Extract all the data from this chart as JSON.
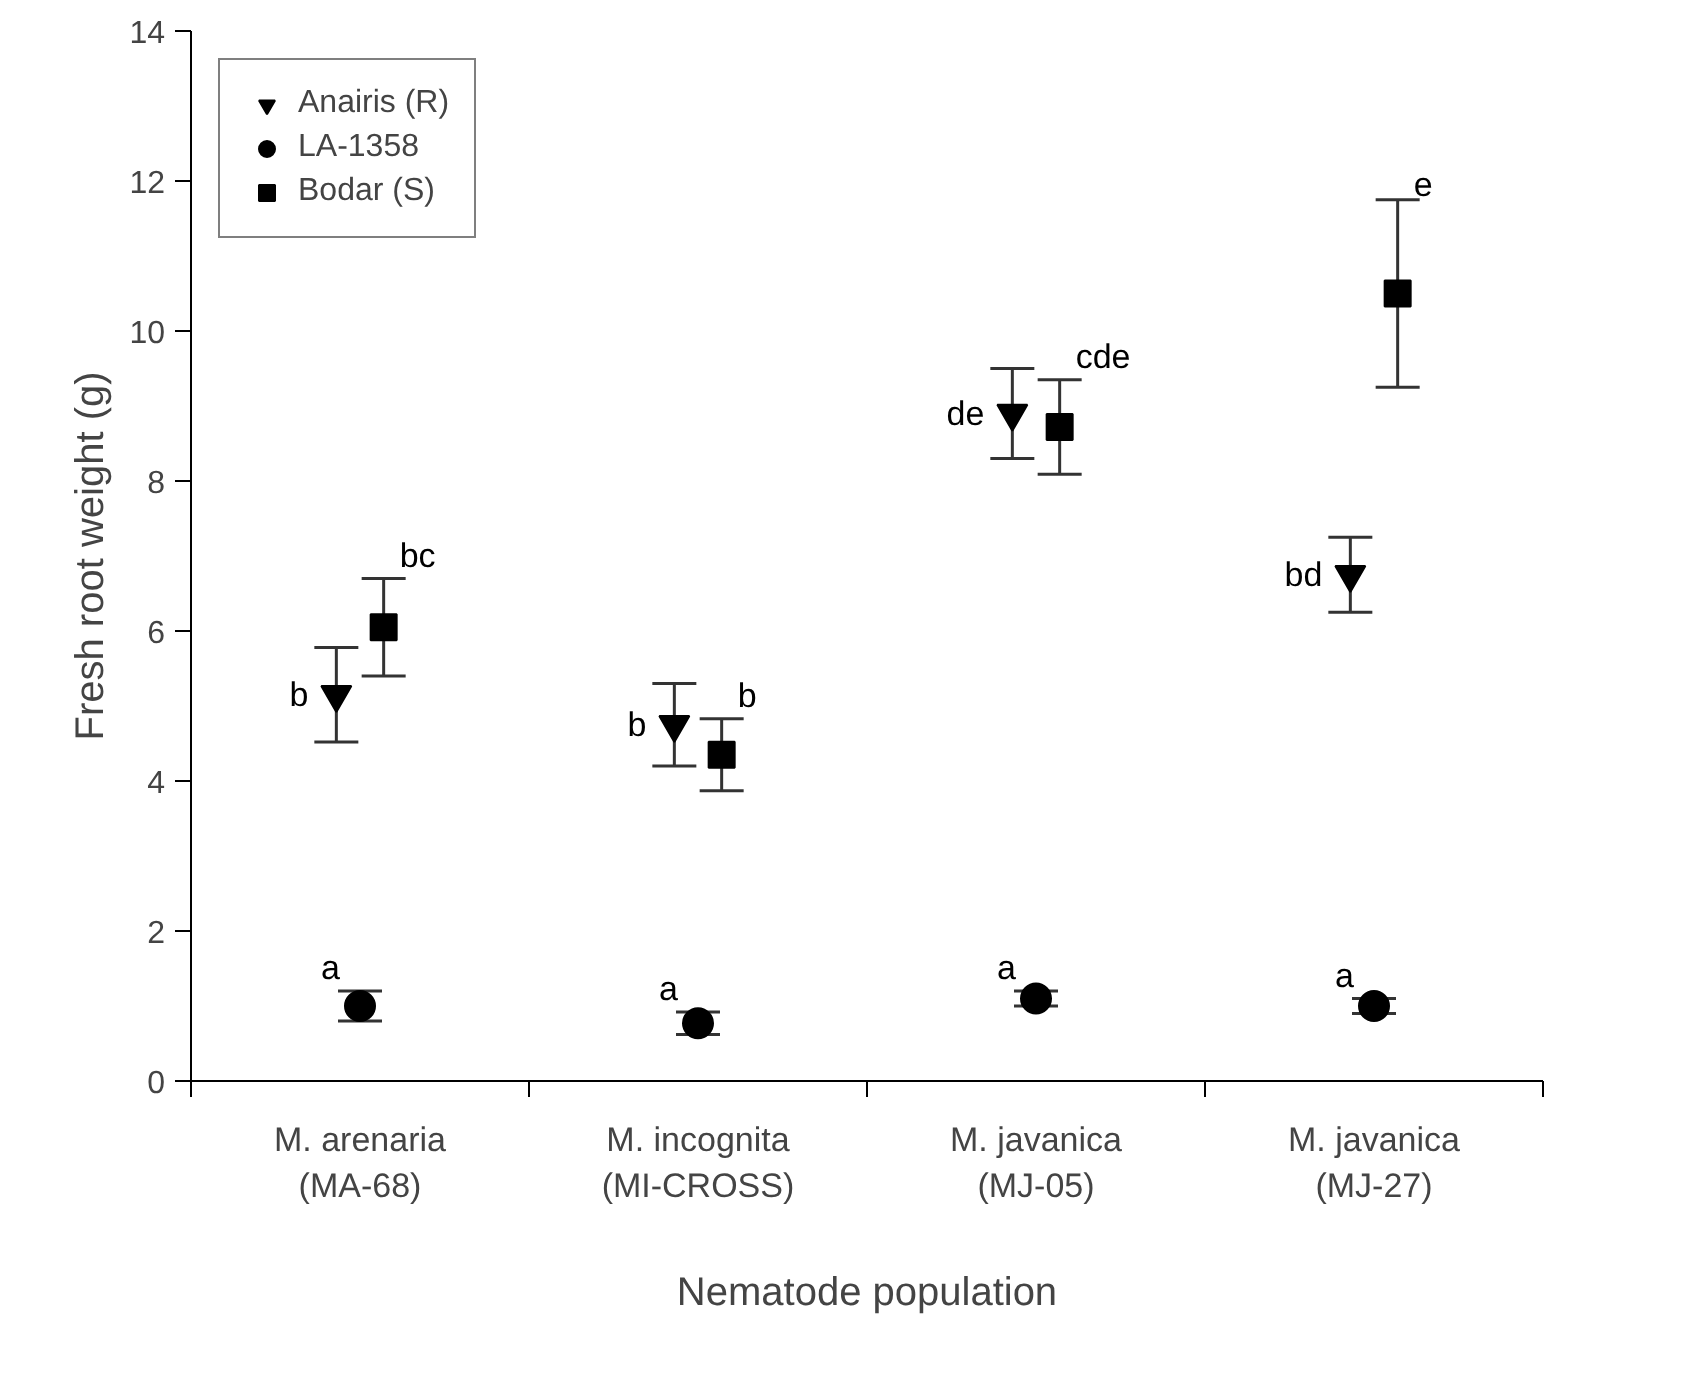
{
  "chart_data": {
    "type": "scatter",
    "xlabel": "Nematode population",
    "ylabel": "Fresh root weight (g)",
    "categories": [
      "M. arenaria\n(MA-68)",
      "M. incognita\n(MI-CROSS)",
      "M. javanica\n(MJ-05)",
      "M. javanica\n(MJ-27)"
    ],
    "series": [
      {
        "name": "Anairis (R)",
        "color": "#000000",
        "marker": "triangle",
        "values": [
          5.15,
          4.75,
          8.9,
          6.75
        ],
        "errors": [
          0.63,
          0.55,
          0.6,
          0.5
        ],
        "value_labels": [
          "b",
          "b",
          "de",
          "bd"
        ]
      },
      {
        "name": "LA-1358",
        "color": "#000000",
        "marker": "circle",
        "values": [
          1.0,
          0.77,
          1.1,
          1.0
        ],
        "errors": [
          0.2,
          0.15,
          0.1,
          0.1
        ],
        "value_labels": [
          "a",
          "a",
          "a",
          "a"
        ]
      },
      {
        "name": "Bodar (S)",
        "color": "#000000",
        "marker": "square",
        "values": [
          6.05,
          4.35,
          8.72,
          10.5
        ],
        "errors": [
          0.65,
          0.48,
          0.63,
          1.25
        ],
        "value_labels": [
          "bc",
          "b",
          "cde",
          "e"
        ]
      }
    ],
    "ylim": [
      0,
      14
    ],
    "yticks": [
      0,
      2,
      4,
      6,
      8,
      10,
      12,
      14
    ],
    "grid": false,
    "legend": "top left"
  }
}
